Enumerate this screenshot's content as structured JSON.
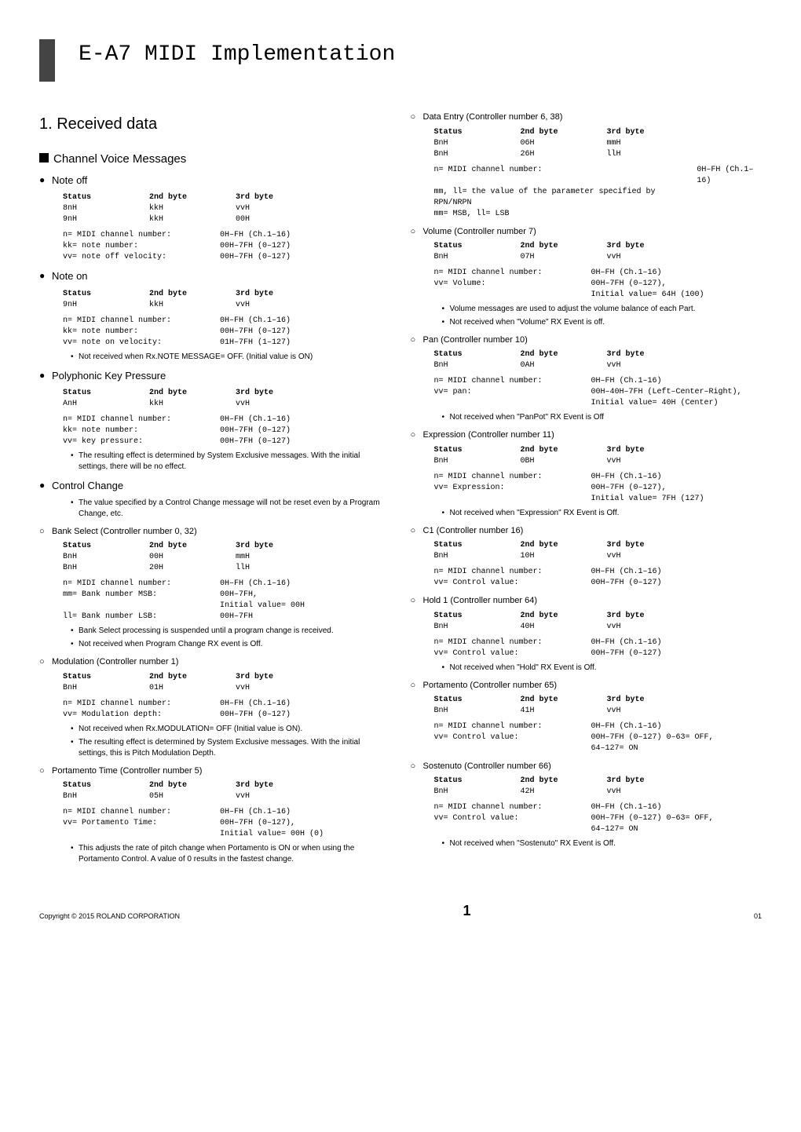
{
  "doc_title": "E-A7 MIDI Implementation",
  "h1_1": "1. Received data",
  "h2_1": "Channel Voice Messages",
  "cols": [
    "Status",
    "2nd byte",
    "3rd byte"
  ],
  "sections": {
    "note_off": {
      "title": "Note off",
      "rows": [
        [
          "8nH",
          "kkH",
          "vvH"
        ],
        [
          "9nH",
          "kkH",
          "00H"
        ]
      ],
      "desc": [
        [
          "n= MIDI channel number:",
          "0H–FH (Ch.1–16)"
        ],
        [
          "kk= note number:",
          "00H–7FH (0–127)"
        ],
        [
          "vv= note off velocity:",
          "00H–7FH (0–127)"
        ]
      ]
    },
    "note_on": {
      "title": "Note on",
      "rows": [
        [
          "9nH",
          "kkH",
          "vvH"
        ]
      ],
      "desc": [
        [
          "n= MIDI channel number:",
          "0H–FH (Ch.1–16)"
        ],
        [
          "kk= note number:",
          "00H–7FH (0–127)"
        ],
        [
          "vv= note on velocity:",
          "01H–7FH (1–127)"
        ]
      ],
      "notes": [
        "Not received when Rx.NOTE MESSAGE= OFF. (Initial value is ON)"
      ]
    },
    "poly": {
      "title": "Polyphonic Key Pressure",
      "rows": [
        [
          "AnH",
          "kkH",
          "vvH"
        ]
      ],
      "desc": [
        [
          "n= MIDI channel number:",
          "0H–FH (Ch.1–16)"
        ],
        [
          "kk= note number:",
          "00H–7FH (0–127)"
        ],
        [
          "vv= key pressure:",
          "00H–7FH (0–127)"
        ]
      ],
      "notes": [
        "The resulting effect is determined by System Exclusive messages. With the initial settings, there will be no effect."
      ]
    },
    "cc": {
      "title": "Control Change",
      "notes": [
        "The value specified by a Control Change message will not be reset even by a Program Change, etc."
      ]
    },
    "bank_select": {
      "title": "Bank Select (Controller number 0, 32)",
      "rows": [
        [
          "BnH",
          "00H",
          "mmH"
        ],
        [
          "BnH",
          "20H",
          "llH"
        ]
      ],
      "desc": [
        [
          "n= MIDI channel number:",
          "0H–FH (Ch.1–16)"
        ],
        [
          "mm= Bank number MSB:",
          "00H–7FH,\nInitial value= 00H"
        ],
        [
          "ll= Bank number LSB:",
          "00H–7FH"
        ]
      ],
      "notes": [
        "Bank Select processing is suspended until a program change is received.",
        "Not received when Program Change RX event is Off."
      ]
    },
    "modulation": {
      "title": "Modulation (Controller number 1)",
      "rows": [
        [
          "BnH",
          "01H",
          "vvH"
        ]
      ],
      "desc": [
        [
          "n= MIDI channel number:",
          "0H–FH (Ch.1–16)"
        ],
        [
          "vv= Modulation depth:",
          "00H–7FH (0–127)"
        ]
      ],
      "notes": [
        "Not received when Rx.MODULATION= OFF (Initial value is ON).",
        "The resulting effect is determined by System Exclusive messages. With the initial settings, this is Pitch Modulation Depth."
      ]
    },
    "port_time": {
      "title": "Portamento Time (Controller number 5)",
      "rows": [
        [
          "BnH",
          "05H",
          "vvH"
        ]
      ],
      "desc": [
        [
          "n= MIDI channel number:",
          "0H–FH (Ch.1–16)"
        ],
        [
          "vv= Portamento Time:",
          "00H–7FH (0–127),\nInitial value= 00H (0)"
        ]
      ],
      "notes": [
        "This adjusts the rate of pitch change when Portamento is ON or when using the Portamento Control. A value of 0 results in the fastest change."
      ]
    },
    "data_entry": {
      "title": "Data Entry (Controller number 6, 38)",
      "rows": [
        [
          "BnH",
          "06H",
          "mmH"
        ],
        [
          "BnH",
          "26H",
          "llH"
        ]
      ],
      "desc": [
        [
          "n= MIDI channel number:",
          "0H–FH (Ch.1–16)"
        ],
        [
          "mm, ll= the value of the parameter specified by RPN/NRPN",
          ""
        ],
        [
          "mm= MSB, ll= LSB",
          ""
        ]
      ]
    },
    "volume": {
      "title": "Volume (Controller number 7)",
      "rows": [
        [
          "BnH",
          "07H",
          "vvH"
        ]
      ],
      "desc": [
        [
          "n= MIDI channel number:",
          "0H–FH (Ch.1–16)"
        ],
        [
          "vv= Volume:",
          "00H–7FH (0–127),\nInitial value= 64H (100)"
        ]
      ],
      "notes": [
        "Volume messages are used to adjust the volume balance of each Part.",
        "Not received when \"Volume\" RX Event is off."
      ]
    },
    "pan": {
      "title": "Pan (Controller number 10)",
      "rows": [
        [
          "BnH",
          "0AH",
          "vvH"
        ]
      ],
      "desc": [
        [
          "n= MIDI channel number:",
          "0H–FH (Ch.1–16)"
        ],
        [
          "vv= pan:",
          "00H–40H–7FH (Left–Center–Right),\nInitial value= 40H (Center)"
        ]
      ],
      "notes": [
        "Not received when \"PanPot\" RX Event is Off"
      ]
    },
    "expr": {
      "title": "Expression (Controller number 11)",
      "rows": [
        [
          "BnH",
          "0BH",
          "vvH"
        ]
      ],
      "desc": [
        [
          "n= MIDI channel number:",
          "0H–FH (Ch.1–16)"
        ],
        [
          "vv= Expression:",
          "00H–7FH (0–127),\nInitial value= 7FH (127)"
        ]
      ],
      "notes": [
        "Not received when \"Expression\" RX Event is Off."
      ]
    },
    "c1": {
      "title": "C1 (Controller number 16)",
      "rows": [
        [
          "BnH",
          "10H",
          "vvH"
        ]
      ],
      "desc": [
        [
          "n= MIDI channel number:",
          "0H–FH (Ch.1–16)"
        ],
        [
          "vv= Control value:",
          "00H–7FH (0–127)"
        ]
      ]
    },
    "hold1": {
      "title": "Hold 1 (Controller number 64)",
      "rows": [
        [
          "BnH",
          "40H",
          "vvH"
        ]
      ],
      "desc": [
        [
          "n= MIDI channel number:",
          "0H–FH (Ch.1–16)"
        ],
        [
          "vv= Control value:",
          "00H–7FH (0–127)"
        ]
      ],
      "notes": [
        "Not received when \"Hold\" RX Event is Off."
      ]
    },
    "porta": {
      "title": "Portamento (Controller number 65)",
      "rows": [
        [
          "BnH",
          "41H",
          "vvH"
        ]
      ],
      "desc": [
        [
          "n= MIDI channel number:",
          "0H–FH (Ch.1–16)"
        ],
        [
          "vv= Control value:",
          "00H–7FH (0–127) 0–63= OFF,\n64–127= ON"
        ]
      ]
    },
    "sost": {
      "title": "Sostenuto (Controller number 66)",
      "rows": [
        [
          "BnH",
          "42H",
          "vvH"
        ]
      ],
      "desc": [
        [
          "n= MIDI channel number:",
          "0H–FH (Ch.1–16)"
        ],
        [
          "vv= Control value:",
          "00H–7FH (0–127) 0–63= OFF,\n64–127= ON"
        ]
      ],
      "notes": [
        "Not received when \"Sostenuto\" RX Event is Off."
      ]
    }
  },
  "footer": {
    "copyright": "Copyright © 2015 ROLAND CORPORATION",
    "page_big": "1",
    "page_small": "01"
  }
}
